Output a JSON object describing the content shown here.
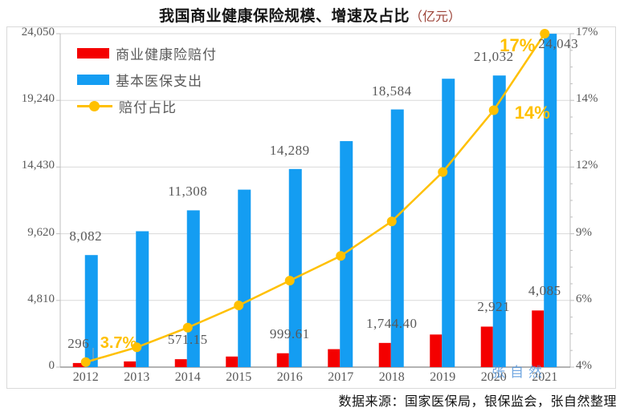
{
  "title": {
    "main": "我国商业健康保险规模、增速及占比",
    "unit": "（亿元）"
  },
  "legend": [
    {
      "label": "商业健康险赔付",
      "type": "bar",
      "color": "#f40000"
    },
    {
      "label": "基本医保支出",
      "type": "bar",
      "color": "#149df2"
    },
    {
      "label": "赔付占比",
      "type": "line",
      "color": "#ffc000"
    }
  ],
  "chart_data": {
    "type": "bar",
    "subtype": "grouped bars with secondary-axis line (combo)",
    "title": "我国商业健康保险规模、增速及占比（亿元）",
    "categories": [
      "2012",
      "2013",
      "2014",
      "2015",
      "2016",
      "2017",
      "2018",
      "2019",
      "2020",
      "2021"
    ],
    "series": [
      {
        "name": "商业健康险赔付",
        "type": "bar",
        "axis": "left",
        "color": "#f40000",
        "values": [
          296,
          411,
          571.15,
          763,
          999.61,
          1295,
          1744.4,
          2351,
          2921,
          4085
        ],
        "labels": [
          "296",
          "",
          "571.15",
          "",
          "999.61",
          "",
          "1,744.40",
          "",
          "2,921",
          "4,085"
        ]
      },
      {
        "name": "基本医保支出",
        "type": "bar",
        "axis": "left",
        "color": "#149df2",
        "values": [
          8082,
          9800,
          11308,
          12800,
          14289,
          16300,
          18584,
          20800,
          21032,
          24043
        ],
        "labels": [
          "8,082",
          "",
          "11,308",
          "",
          "14,289",
          "",
          "18,584",
          "",
          "21,032",
          "24,043"
        ]
      },
      {
        "name": "赔付占比",
        "type": "line",
        "axis": "right",
        "color": "#ffc000",
        "values": [
          3.7,
          4.3,
          5.1,
          6.0,
          7.0,
          8.0,
          9.4,
          11.4,
          13.9,
          17.0
        ],
        "labels": [
          "3.7%",
          "",
          "",
          "",
          "",
          "",
          "",
          "",
          "14%",
          "17%"
        ]
      }
    ],
    "left_axis": {
      "min": 0,
      "max": 24050,
      "tick_labels_top_to_bottom": [
        "24,050",
        "19,240",
        "14,430",
        "9,620",
        "4,810",
        "0"
      ]
    },
    "right_axis": {
      "min": 3.5,
      "max": 17,
      "tick_labels_top_to_bottom": [
        "17%",
        "14%",
        "12%",
        "9%",
        "6%",
        "4%"
      ]
    },
    "grid": true,
    "legend_position": "top-left"
  },
  "source": "数据来源：国家医保局，银保监会，张自然整理",
  "watermark": "张自然",
  "colors": {
    "claims_bar": "#f40000",
    "medicare_bar": "#149df2",
    "ratio_line": "#ffc000",
    "gridline": "#d9d9d9",
    "axis_text": "#595959",
    "title_unit": "#9c4338",
    "watermark": "#5b9bd5"
  }
}
